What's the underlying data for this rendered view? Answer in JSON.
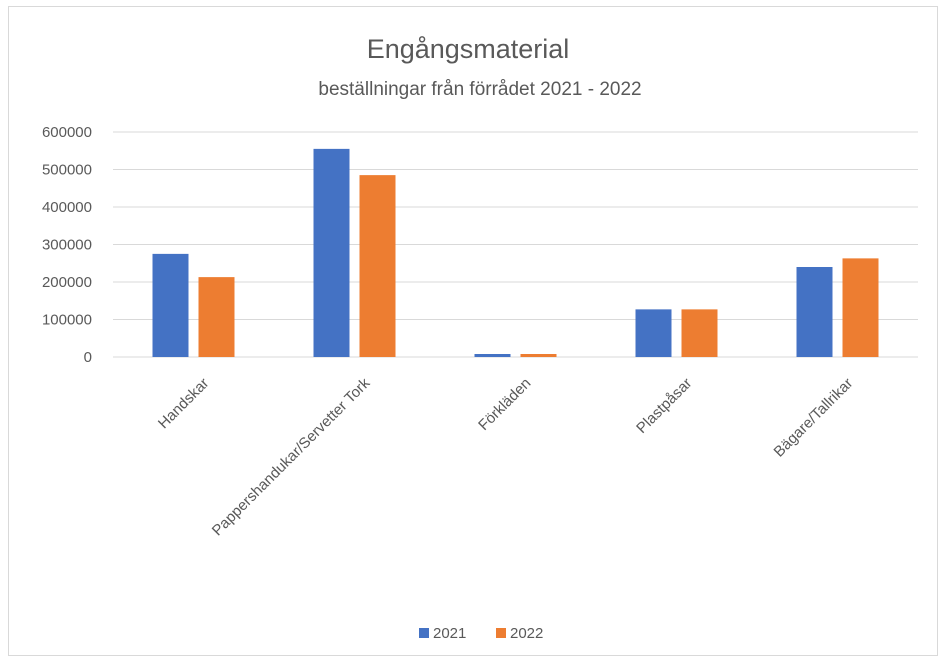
{
  "chart_data": {
    "type": "bar",
    "title": "Engångsmaterial",
    "subtitle": "beställningar från förrådet 2021 - 2022",
    "categories": [
      "Handskar",
      "Pappershandukar/Servetter Tork",
      "Förkläden",
      "Plastpåsar",
      "Bägare/Tallrikar"
    ],
    "series": [
      {
        "name": "2021",
        "color": "#4472c4",
        "values": [
          275000,
          555000,
          8000,
          127000,
          240000
        ]
      },
      {
        "name": "2022",
        "color": "#ed7d31",
        "values": [
          213000,
          485000,
          8000,
          127000,
          263000
        ]
      }
    ],
    "yticks": [
      "0",
      "100000",
      "200000",
      "300000",
      "400000",
      "500000",
      "600000"
    ],
    "ylim": [
      0,
      600000
    ],
    "grid": true,
    "legend_position": "bottom"
  }
}
